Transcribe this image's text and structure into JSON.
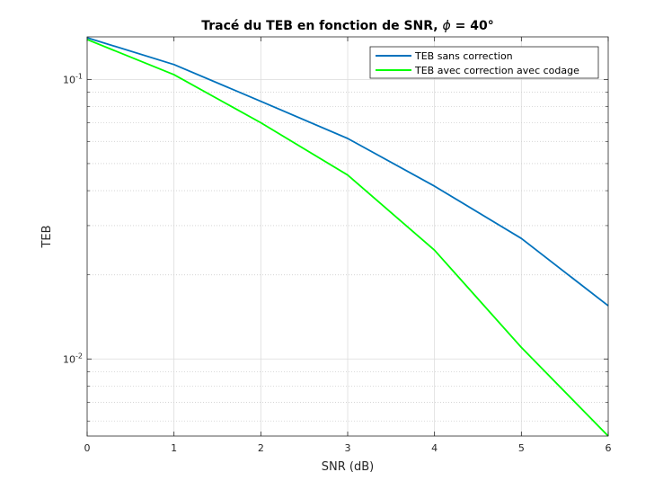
{
  "chart_data": {
    "type": "line",
    "title_prefix": "Tracé du TEB en fonction de SNR, ",
    "title_symbol": "ϕ",
    "title_suffix": " = 40°",
    "xlabel": "SNR (dB)",
    "ylabel": "TEB",
    "x": [
      0,
      1,
      2,
      3,
      4,
      5,
      6
    ],
    "xlim": [
      0,
      6
    ],
    "ylim": [
      0.0053,
      0.142
    ],
    "yscale": "log",
    "grid": true,
    "legend_position": "top-right",
    "x_ticks": [
      "0",
      "1",
      "2",
      "3",
      "4",
      "5",
      "6"
    ],
    "y_ticks": [
      {
        "value": 0.1,
        "base": "10",
        "exp": "-1"
      },
      {
        "value": 0.01,
        "base": "10",
        "exp": "-2"
      }
    ],
    "series": [
      {
        "name": "TEB sans correction",
        "color": "#0072bd",
        "values": [
          0.141,
          0.113,
          0.0835,
          0.0615,
          0.0415,
          0.027,
          0.0155
        ]
      },
      {
        "name": "TEB avec correction avec codage",
        "color": "#00ff00",
        "values": [
          0.139,
          0.104,
          0.07,
          0.0455,
          0.0245,
          0.011,
          0.0053
        ]
      }
    ]
  }
}
